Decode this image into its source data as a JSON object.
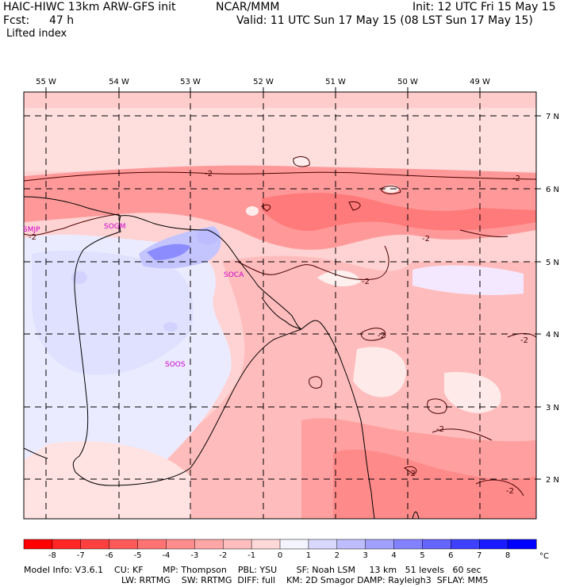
{
  "header": {
    "model_title": "HAIC-HIWC 13km ARW-GFS init",
    "org": "NCAR/MMM",
    "init": "Init: 12 UTC Fri 15 May 15",
    "fcst_label": "Fcst:",
    "fcst_value": "47 h",
    "valid": "Valid: 11 UTC Sun 17 May 15 (08 LST Sun 17 May 15)",
    "field": "Lifted index"
  },
  "map": {
    "longitude_labels": [
      "55 W",
      "54 W",
      "53 W",
      "52 W",
      "51 W",
      "50 W",
      "49 W"
    ],
    "latitude_labels": [
      "7 N",
      "6 N",
      "5 N",
      "4 N",
      "3 N",
      "2 N"
    ],
    "stations": [
      "SMJP",
      "SOGM",
      "SOCA",
      "SOOS"
    ],
    "contour_labels": [
      "-2",
      "-2",
      "-2",
      "-2",
      "-2",
      "-2",
      "-2",
      "-2",
      "-2",
      "-2"
    ],
    "colors": {
      "neg_strong": "#ff0000",
      "neg_light": "#ffd3d3",
      "pos_light": "#ebebff",
      "pos_mid": "#8c8cff",
      "station_label": "#cc00cc"
    }
  },
  "colorbar": {
    "tick_labels": [
      "-8",
      "-7",
      "-6",
      "-5",
      "-4",
      "-3",
      "-2",
      "-1",
      "0",
      "1",
      "2",
      "3",
      "4",
      "5",
      "6",
      "7",
      "8"
    ],
    "unit": "°C",
    "colors": [
      "#ff0000",
      "#ff2626",
      "#ff4040",
      "#ff5a5a",
      "#ff7373",
      "#ff8c8c",
      "#ffa6a6",
      "#ffbdbd",
      "#ffd9d9",
      "#f4f4ff",
      "#d9d9ff",
      "#bdbdff",
      "#a0a0ff",
      "#8282ff",
      "#6464ff",
      "#4040ff",
      "#1a1aff",
      "#0000ff"
    ]
  },
  "footer": {
    "line1": "Model Info: V3.6.1    CU: KF       MP: Thompson    PBL: YSU       SF: Noah LSM     13 km   51 levels   60 sec",
    "line2": "LW: RRTMG    SW: RRTMG  DIFF: full    KM: 2D Smagor DAMP: Rayleigh3  SFLAY: MM5"
  }
}
